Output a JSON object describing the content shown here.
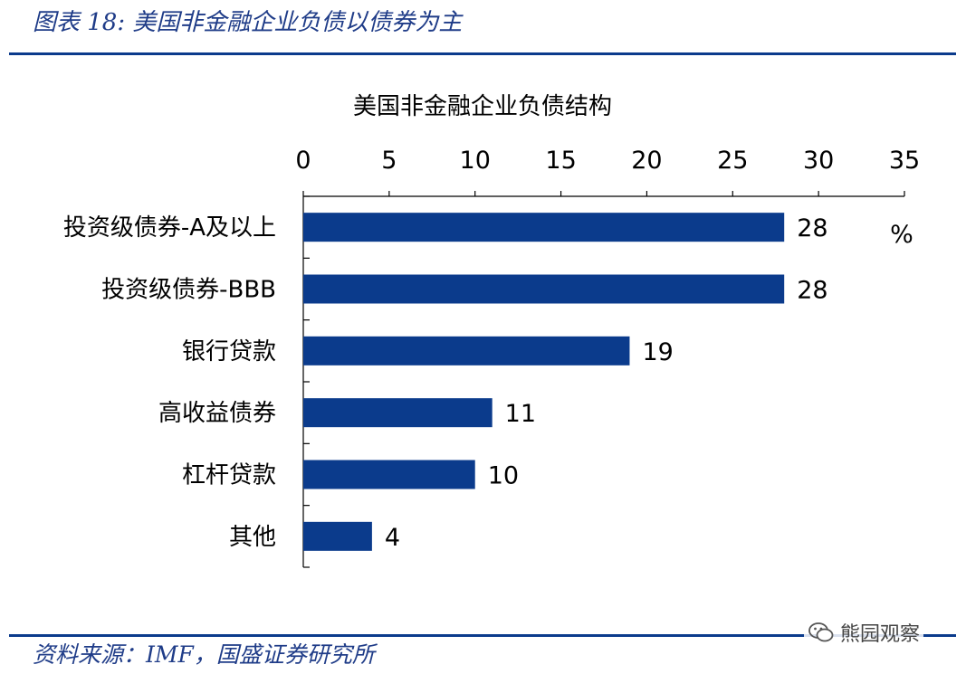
{
  "header": {
    "figure_title": "图表 18:  美国非金融企业负债以债券为主"
  },
  "footer": {
    "source": "资料来源：IMF，国盛证券研究所",
    "watermark": "熊园观察",
    "watermark_icon": "wechat-icon"
  },
  "colors": {
    "bar": "#0b3b8c",
    "rule": "#0b3b8c",
    "title_text": "#1f3c88"
  },
  "chart_data": {
    "type": "bar",
    "orientation": "horizontal",
    "title": "美国非金融企业负债结构",
    "categories": [
      "投资级债券-A及以上",
      "投资级债券-BBB",
      "银行贷款",
      "高收益债券",
      "杠杆贷款",
      "其他"
    ],
    "values": [
      28,
      28,
      19,
      11,
      10,
      4
    ],
    "unit": "%",
    "xlim": [
      0,
      35
    ],
    "xticks": [
      0,
      5,
      10,
      15,
      20,
      25,
      30,
      35
    ],
    "xaxis_position": "top",
    "grid": false,
    "legend": "none"
  }
}
